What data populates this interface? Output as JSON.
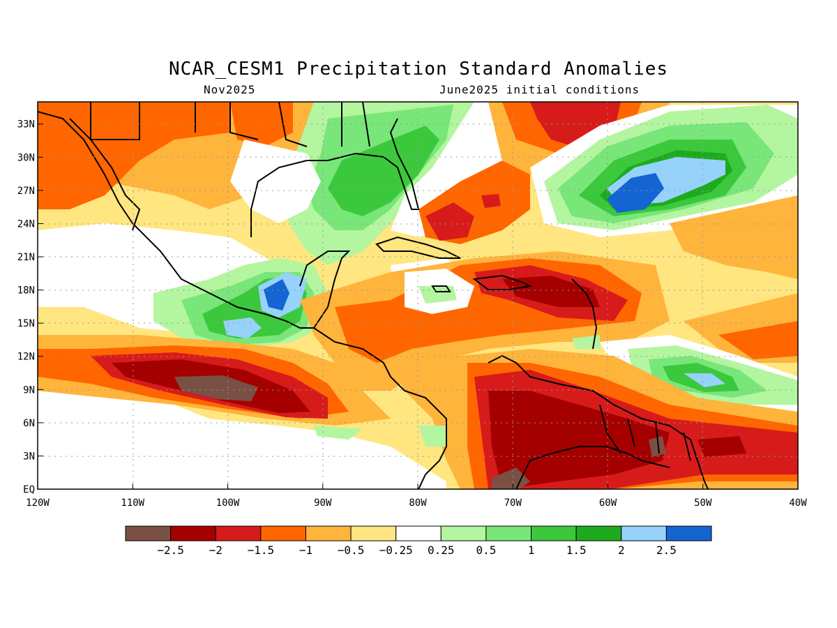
{
  "header": {
    "title": "NCAR_CESM1 Precipitation Standard Anomalies",
    "target_month": "Nov2025",
    "initial_conditions": "June2025 initial conditions"
  },
  "map": {
    "lon_range": [
      -120,
      -40
    ],
    "lat_range": [
      0,
      35
    ],
    "lon_ticks": [
      "120W",
      "110W",
      "100W",
      "90W",
      "80W",
      "70W",
      "60W",
      "50W",
      "40W"
    ],
    "lat_ticks": [
      "EQ",
      "3N",
      "6N",
      "9N",
      "12N",
      "15N",
      "18N",
      "21N",
      "24N",
      "27N",
      "30N",
      "33N"
    ]
  },
  "colorbar": {
    "colors": [
      "#7b5044",
      "#a50000",
      "#d71b1b",
      "#ff6600",
      "#ffb43c",
      "#ffe680",
      "#ffffff",
      "#b4f5a0",
      "#78e678",
      "#3cc83c",
      "#1eaa1e",
      "#96d2fa",
      "#1464d2"
    ],
    "labels": [
      "-2.5",
      "-2",
      "-1.5",
      "-1",
      "-0.5",
      "-0.25",
      "0.25",
      "0.5",
      "1",
      "1.5",
      "2",
      "2.5"
    ]
  }
}
